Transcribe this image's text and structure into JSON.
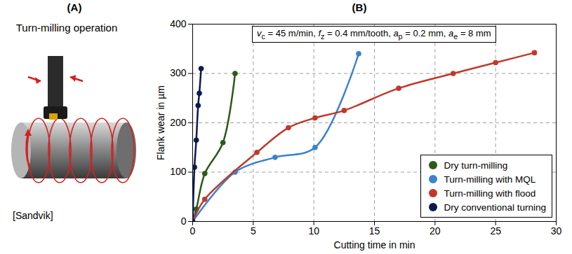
{
  "panel_a": {
    "label": "(A)",
    "title": "Turn-milling operation",
    "source": "[Sandvik]"
  },
  "chart_data": {
    "panel_label": "(B)",
    "type": "line",
    "annotation": "vc = 45 m/min, fz = 0.4 mm/tooth, ap = 0.2 mm, ae = 8 mm",
    "x_label": "Cutting time in min",
    "y_label": "Flank wear in µm",
    "xlim": [
      0,
      30
    ],
    "xticks": [
      0,
      5,
      10,
      15,
      20,
      25,
      30
    ],
    "ylim": [
      0,
      400
    ],
    "yticks": [
      0,
      100,
      200,
      300,
      400
    ],
    "grid": true,
    "legend": "bottom-right",
    "marker": "circle",
    "line_style": "solid",
    "series": [
      {
        "name": "Dry turn-milling",
        "color": "#2d5a17",
        "x": [
          0,
          0.3,
          1.0,
          2.5,
          3.5
        ],
        "values": [
          0,
          25,
          97,
          160,
          300
        ]
      },
      {
        "name": "Turn-milling with MQL",
        "color": "#3b82d0",
        "x": [
          0,
          3.5,
          6.8,
          10.1,
          13.7
        ],
        "values": [
          0,
          100,
          130,
          150,
          340
        ]
      },
      {
        "name": "Turn-milling with flood",
        "color": "#c0392b",
        "x": [
          0,
          1.0,
          5.3,
          7.9,
          10.1,
          12.5,
          17.0,
          21.5,
          25.0,
          28.2
        ],
        "values": [
          0,
          45,
          140,
          190,
          210,
          225,
          270,
          300,
          322,
          342
        ]
      },
      {
        "name": "Dry conventional turning",
        "color": "#0b1a4f",
        "x": [
          0,
          0.15,
          0.3,
          0.45,
          0.55,
          0.7
        ],
        "values": [
          0,
          110,
          165,
          235,
          260,
          310
        ]
      }
    ]
  }
}
